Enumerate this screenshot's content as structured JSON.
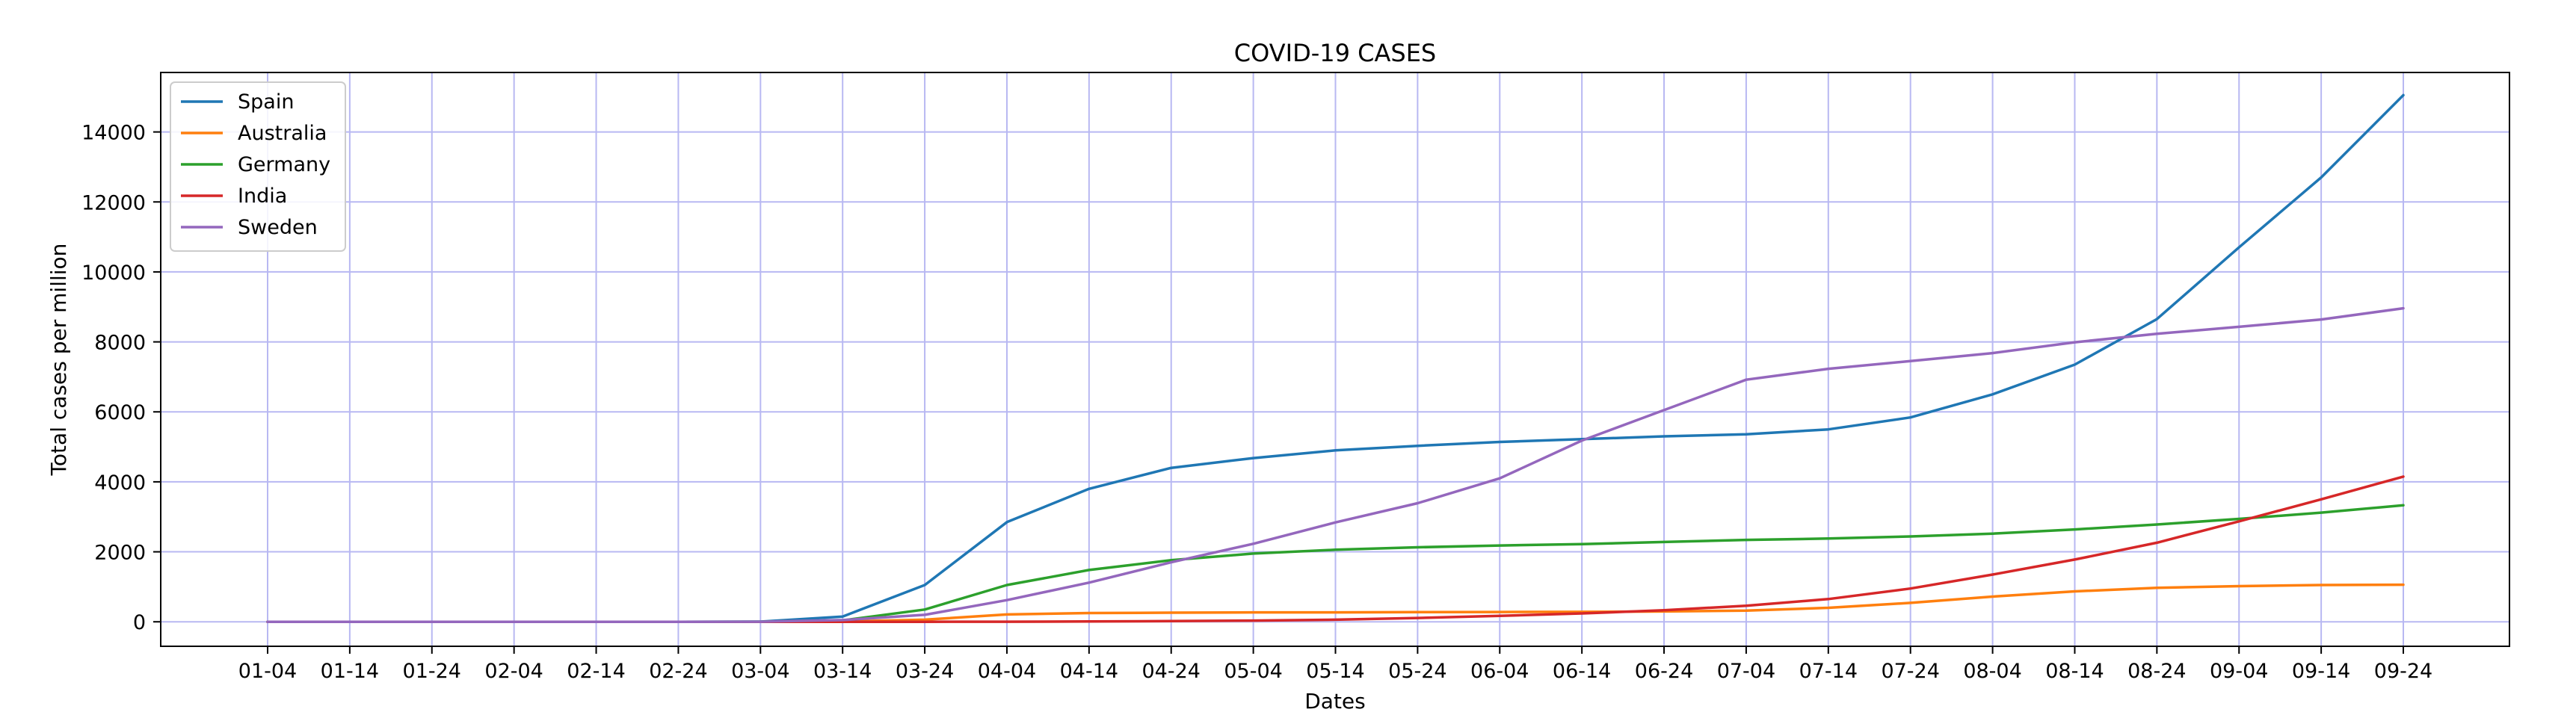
{
  "chart_data": {
    "type": "line",
    "title": "COVID-19 CASES",
    "xlabel": "Dates",
    "ylabel": "Total cases per million",
    "categories": [
      "01-04",
      "01-14",
      "01-24",
      "02-04",
      "02-14",
      "02-24",
      "03-04",
      "03-14",
      "03-24",
      "04-04",
      "04-14",
      "04-24",
      "05-04",
      "05-14",
      "05-24",
      "06-04",
      "06-14",
      "06-24",
      "07-04",
      "07-14",
      "07-24",
      "08-04",
      "08-14",
      "08-24",
      "09-04",
      "09-14",
      "09-24"
    ],
    "ylim": [
      -700,
      15700
    ],
    "yticks": [
      0,
      2000,
      4000,
      6000,
      8000,
      10000,
      12000,
      14000
    ],
    "grid": true,
    "legend_position": "top-left",
    "series": [
      {
        "name": "Spain",
        "color": "#1f77b4",
        "values": [
          0,
          0,
          0,
          0,
          0,
          0,
          5,
          150,
          1050,
          2850,
          3800,
          4400,
          4680,
          4900,
          5030,
          5140,
          5220,
          5300,
          5360,
          5500,
          5840,
          6500,
          7350,
          8650,
          10700,
          12700,
          15050
        ]
      },
      {
        "name": "Australia",
        "color": "#ff7f0e",
        "values": [
          0,
          0,
          0,
          0,
          0,
          0,
          0,
          10,
          60,
          210,
          250,
          260,
          270,
          270,
          275,
          280,
          285,
          295,
          320,
          400,
          540,
          720,
          870,
          970,
          1020,
          1050,
          1060
        ]
      },
      {
        "name": "Germany",
        "color": "#2ca02c",
        "values": [
          0,
          0,
          0,
          0,
          0,
          0,
          2,
          40,
          350,
          1050,
          1480,
          1760,
          1950,
          2060,
          2130,
          2180,
          2220,
          2280,
          2340,
          2380,
          2440,
          2520,
          2640,
          2780,
          2940,
          3120,
          3330
        ]
      },
      {
        "name": "India",
        "color": "#d62728",
        "values": [
          0,
          0,
          0,
          0,
          0,
          0,
          0,
          0,
          1,
          3,
          8,
          20,
          35,
          60,
          110,
          170,
          240,
          330,
          460,
          650,
          950,
          1350,
          1780,
          2260,
          2870,
          3500,
          4150
        ]
      },
      {
        "name": "Sweden",
        "color": "#9467bd",
        "values": [
          0,
          0,
          0,
          0,
          0,
          0,
          2,
          50,
          200,
          620,
          1120,
          1700,
          2230,
          2840,
          3390,
          4100,
          5180,
          6050,
          6920,
          7230,
          7450,
          7680,
          7990,
          8230,
          8430,
          8640,
          8960
        ]
      }
    ]
  }
}
